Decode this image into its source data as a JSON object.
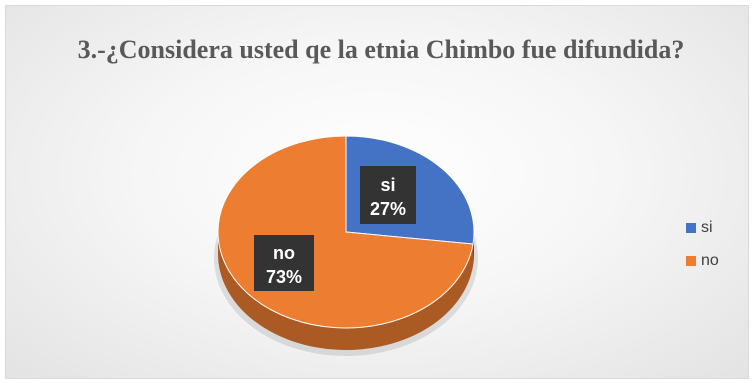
{
  "chart_data": {
    "type": "pie",
    "title": "3.-¿Considera usted qe la etnia Chimbo fue difundida?",
    "categories": [
      "si",
      "no"
    ],
    "values": [
      27,
      73
    ],
    "data_labels": [
      {
        "name": "si",
        "percent": "27%"
      },
      {
        "name": "no",
        "percent": "73%"
      }
    ],
    "colors": [
      "#4472c4",
      "#ed7d31"
    ],
    "style": "3d",
    "legend_position": "right"
  }
}
